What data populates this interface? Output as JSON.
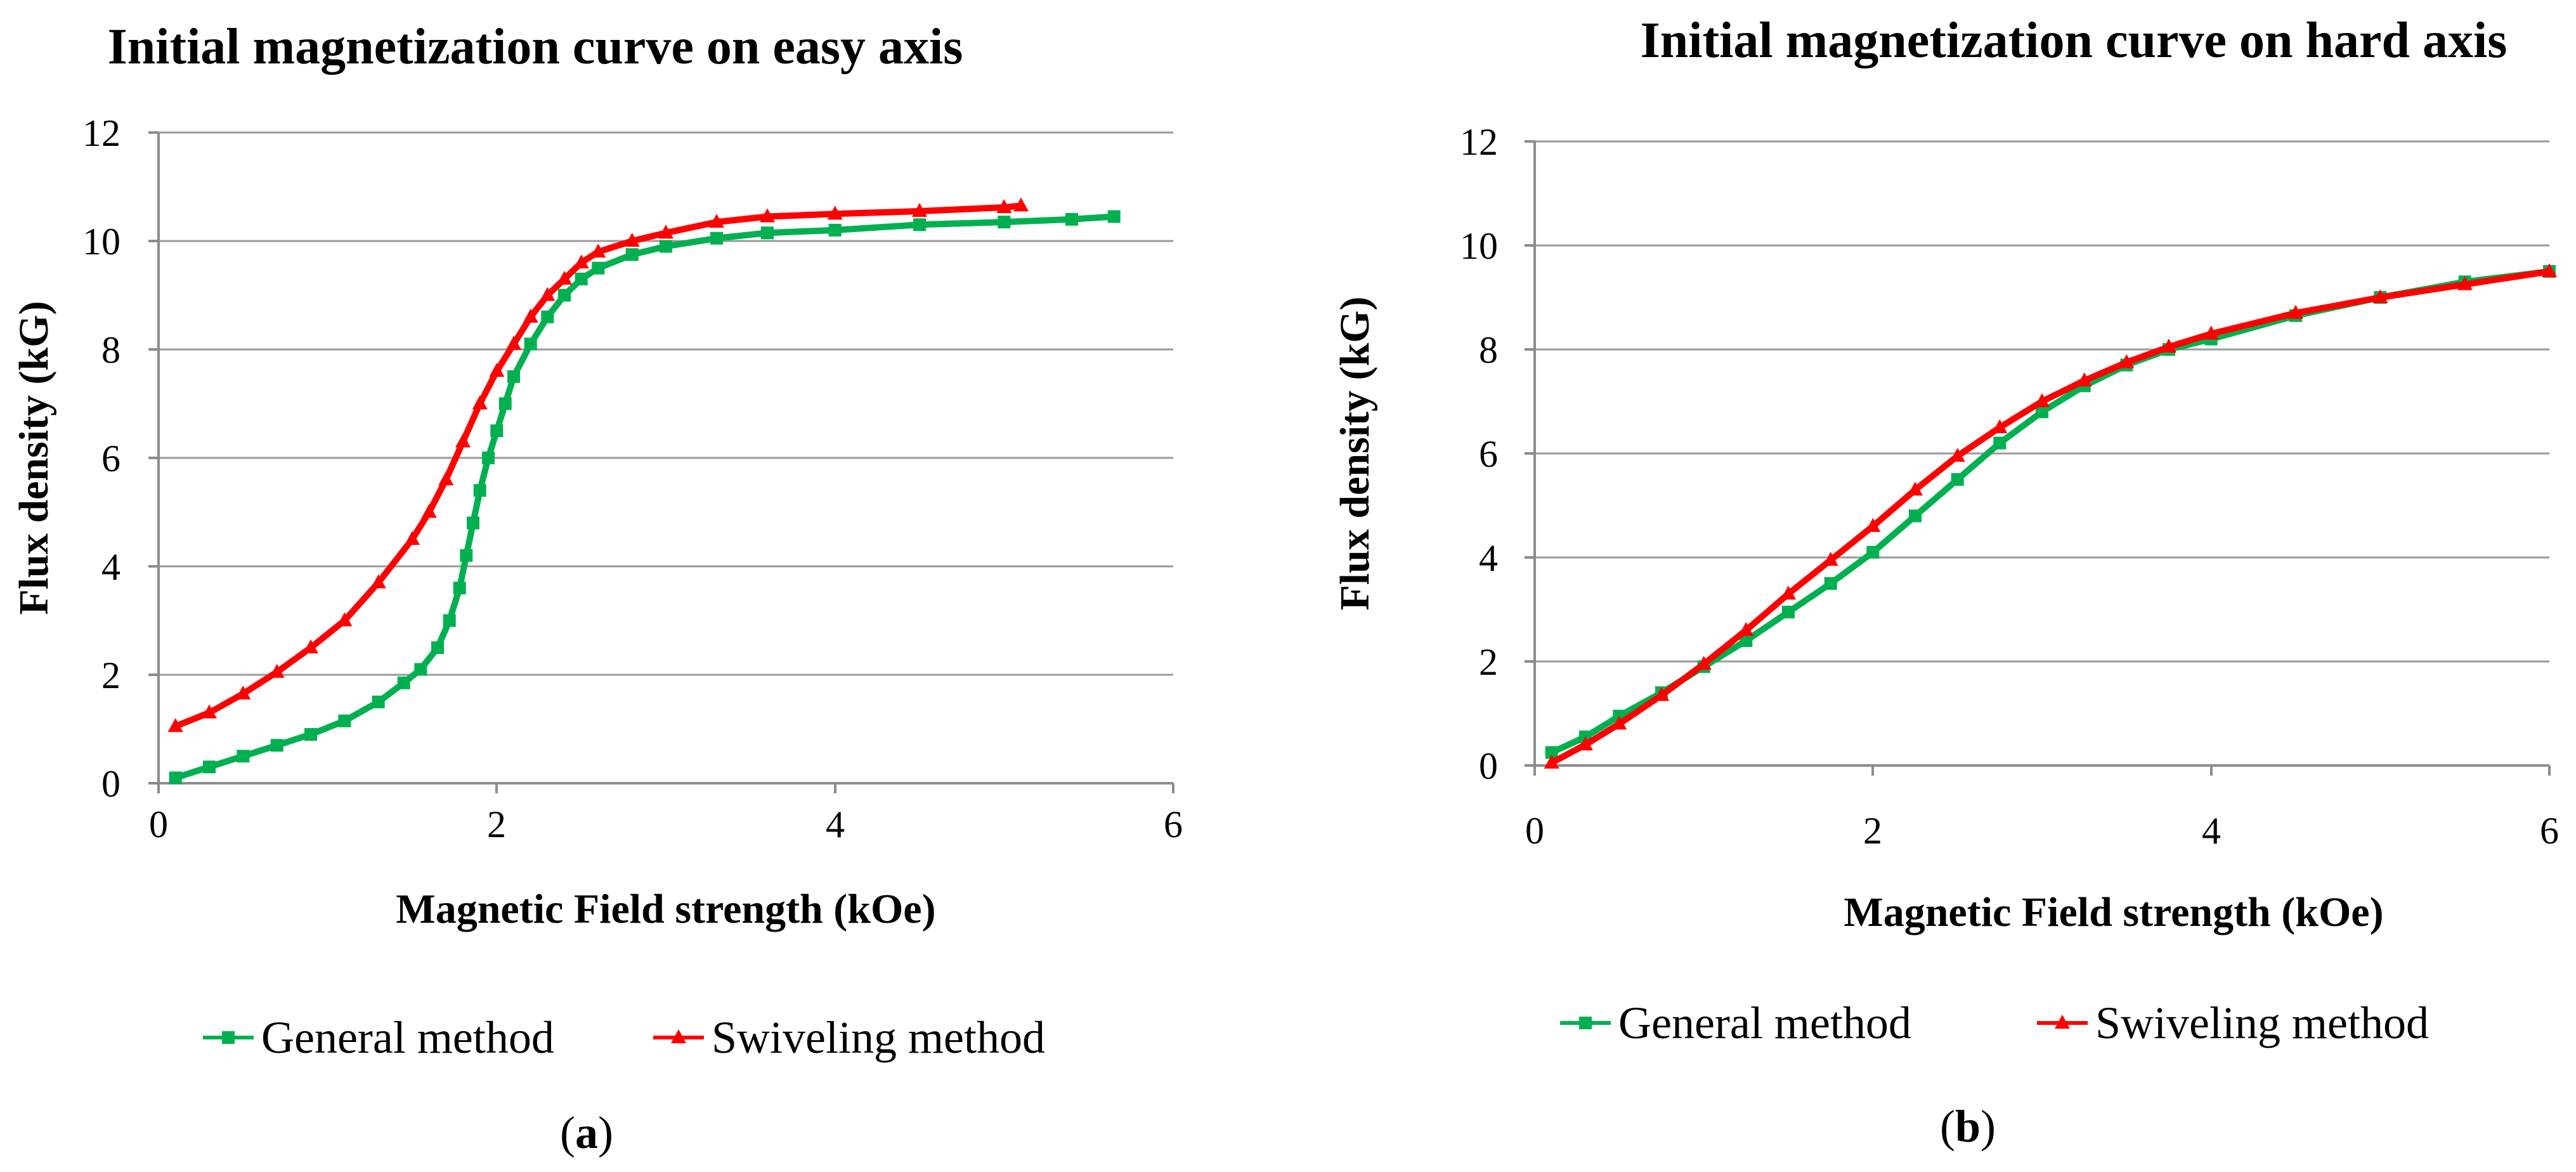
{
  "chart_data": [
    {
      "type": "scatter",
      "panel_label": "(a)",
      "title": "Initial magnetization curve on easy axis",
      "xlabel": "Magnetic Field strength (kOe)",
      "ylabel": "Flux density (kG)",
      "xlim": [
        0,
        6
      ],
      "ylim": [
        0,
        12
      ],
      "xticks": [
        0,
        2,
        4,
        6
      ],
      "yticks": [
        0,
        2,
        4,
        6,
        8,
        10,
        12
      ],
      "grid": "horizontal",
      "legend_position": "bottom",
      "series": [
        {
          "name": "General method",
          "color": "#00b050",
          "marker": "square",
          "x": [
            0.1,
            0.3,
            0.5,
            0.7,
            0.9,
            1.1,
            1.3,
            1.45,
            1.55,
            1.65,
            1.72,
            1.78,
            1.82,
            1.86,
            1.9,
            1.95,
            2.0,
            2.05,
            2.1,
            2.2,
            2.3,
            2.4,
            2.5,
            2.6,
            2.8,
            3.0,
            3.3,
            3.6,
            4.0,
            4.5,
            5.0,
            5.4,
            5.65
          ],
          "y": [
            0.1,
            0.3,
            0.5,
            0.7,
            0.9,
            1.15,
            1.5,
            1.85,
            2.1,
            2.5,
            3.0,
            3.6,
            4.2,
            4.8,
            5.4,
            6.0,
            6.5,
            7.0,
            7.5,
            8.1,
            8.6,
            9.0,
            9.3,
            9.5,
            9.75,
            9.9,
            10.05,
            10.15,
            10.2,
            10.3,
            10.35,
            10.4,
            10.45
          ]
        },
        {
          "name": "Swiveling method",
          "color": "#ff0000",
          "marker": "triangle",
          "x": [
            0.1,
            0.3,
            0.5,
            0.7,
            0.9,
            1.1,
            1.3,
            1.5,
            1.6,
            1.7,
            1.8,
            1.9,
            2.0,
            2.1,
            2.2,
            2.3,
            2.4,
            2.5,
            2.6,
            2.8,
            3.0,
            3.3,
            3.6,
            4.0,
            4.5,
            5.0,
            5.1
          ],
          "y": [
            1.05,
            1.3,
            1.65,
            2.05,
            2.5,
            3.0,
            3.7,
            4.5,
            5.0,
            5.6,
            6.3,
            7.0,
            7.6,
            8.1,
            8.6,
            9.0,
            9.3,
            9.6,
            9.8,
            10.0,
            10.15,
            10.35,
            10.45,
            10.5,
            10.55,
            10.62,
            10.65
          ]
        }
      ]
    },
    {
      "type": "scatter",
      "panel_label": "(b)",
      "title": "Initial magnetization curve on hard axis",
      "xlabel": "Magnetic Field strength (kOe)",
      "ylabel": "Flux density (kG)",
      "xlim": [
        0,
        6
      ],
      "ylim": [
        0,
        12
      ],
      "xticks": [
        0,
        2,
        4,
        6
      ],
      "yticks": [
        0,
        2,
        4,
        6,
        8,
        10,
        12
      ],
      "grid": "horizontal",
      "legend_position": "bottom",
      "series": [
        {
          "name": "General method",
          "color": "#00b050",
          "marker": "square",
          "x": [
            0.1,
            0.3,
            0.5,
            0.75,
            1.0,
            1.25,
            1.5,
            1.75,
            2.0,
            2.25,
            2.5,
            2.75,
            3.0,
            3.25,
            3.5,
            3.75,
            4.0,
            4.5,
            5.0,
            5.5,
            6.0
          ],
          "y": [
            0.25,
            0.55,
            0.95,
            1.4,
            1.9,
            2.4,
            2.95,
            3.5,
            4.1,
            4.8,
            5.5,
            6.2,
            6.8,
            7.3,
            7.7,
            8.0,
            8.2,
            8.65,
            9.0,
            9.3,
            9.5
          ]
        },
        {
          "name": "Swiveling method",
          "color": "#ff0000",
          "marker": "triangle",
          "x": [
            0.1,
            0.3,
            0.5,
            0.75,
            1.0,
            1.25,
            1.5,
            1.75,
            2.0,
            2.25,
            2.5,
            2.75,
            3.0,
            3.25,
            3.5,
            3.75,
            4.0,
            4.5,
            5.0,
            5.5,
            6.0
          ],
          "y": [
            0.05,
            0.4,
            0.8,
            1.35,
            1.95,
            2.6,
            3.3,
            3.95,
            4.6,
            5.3,
            5.95,
            6.5,
            7.0,
            7.4,
            7.75,
            8.05,
            8.3,
            8.7,
            9.0,
            9.25,
            9.5
          ]
        }
      ]
    }
  ]
}
